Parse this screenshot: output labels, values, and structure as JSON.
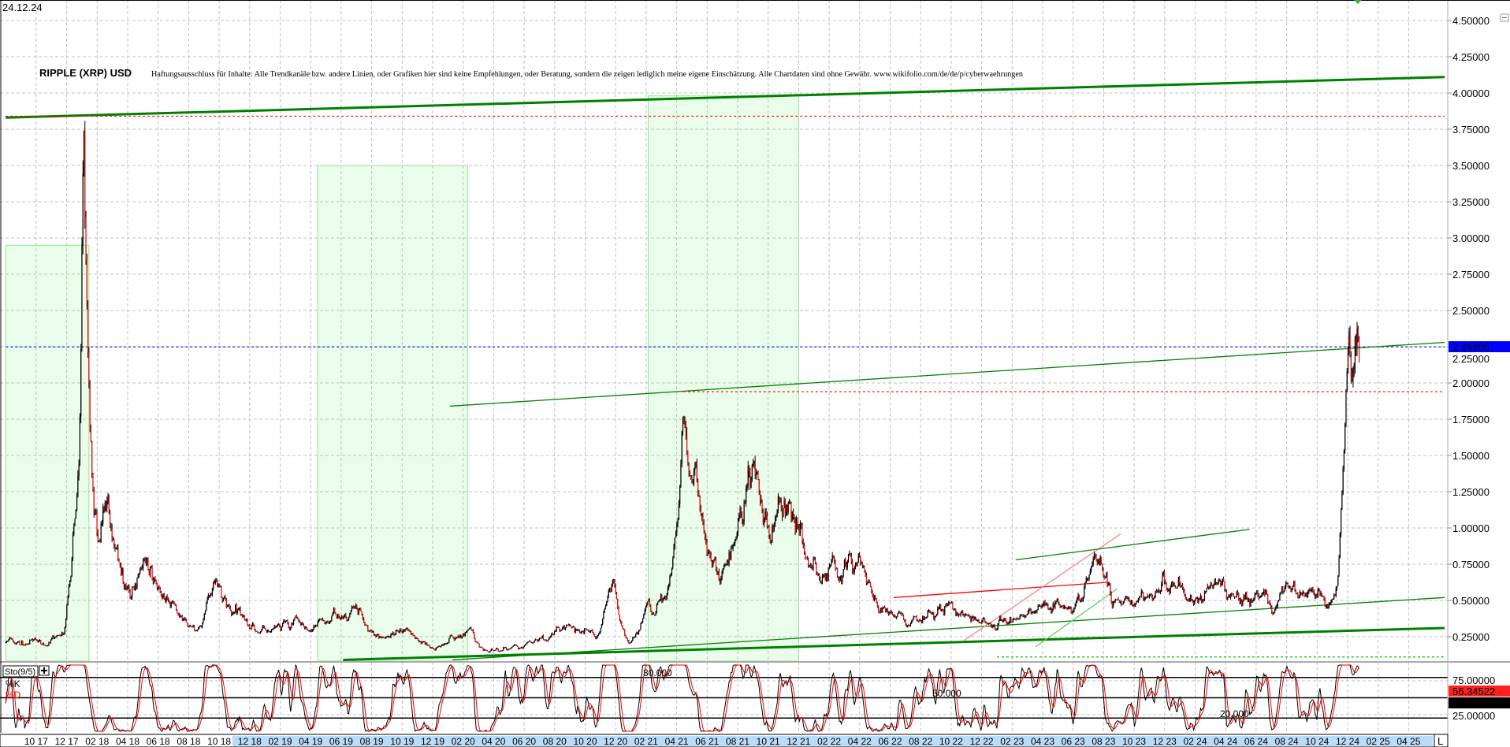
{
  "header": {
    "date": "24.12.24",
    "title": "RIPPLE (XRP) USD",
    "disclaimer": "Haftungsausschluss für Inhalte: Alle Trendkanäle bzw. andere Linien, oder Grafiken hier sind keine Empfehlungen, oder Beratung, sondern die zeigen lediglich meine eigene Einschätzung. Alle Chartdaten sind ohne Gewähr.  www.wikifolio.com/de/de/p/cyberwaehrungen"
  },
  "colors": {
    "grid": "#c0c0c0",
    "candle": "#000000",
    "candle_down": "#ff0000",
    "trend_green": "#008000",
    "zone_fill": "#eafdea",
    "zone_border": "#8ee88e",
    "last_price_bg": "#0000ff",
    "k_line": "#000000",
    "d_line": "#ff0000"
  },
  "chart_data": [
    {
      "type": "candlestick",
      "title": "RIPPLE (XRP) USD",
      "y_axis_position": "right",
      "ylim": [
        0.08,
        4.64
      ],
      "y_ticks": [
        "4.50000",
        "4.25000",
        "4.00000",
        "3.75000",
        "3.50000",
        "3.25000",
        "3.00000",
        "2.75000",
        "2.50000",
        "2.25000",
        "2.00000",
        "1.75000",
        "1.50000",
        "1.25000",
        "1.00000",
        "0.75000",
        "0.50000",
        "0.25000"
      ],
      "y_tick_values": [
        4.5,
        4.25,
        4.0,
        3.75,
        3.5,
        3.25,
        3.0,
        2.75,
        2.5,
        2.25,
        2.0,
        1.75,
        1.5,
        1.25,
        1.0,
        0.75,
        0.5,
        0.25
      ],
      "grid": true,
      "last_price": {
        "value": 2.24905,
        "label": "2.24905"
      },
      "close_keypoints": [
        [
          "2017-08-01",
          0.22
        ],
        [
          "2017-09-15",
          0.2
        ],
        [
          "2017-11-01",
          0.22
        ],
        [
          "2017-11-25",
          0.25
        ],
        [
          "2017-12-10",
          0.75
        ],
        [
          "2017-12-25",
          1.5
        ],
        [
          "2018-01-04",
          3.4
        ],
        [
          "2018-01-15",
          1.8
        ],
        [
          "2018-02-06",
          0.8
        ],
        [
          "2018-02-20",
          1.2
        ],
        [
          "2018-03-20",
          0.7
        ],
        [
          "2018-04-06",
          0.5
        ],
        [
          "2018-05-01",
          0.9
        ],
        [
          "2018-05-30",
          0.6
        ],
        [
          "2018-07-01",
          0.45
        ],
        [
          "2018-08-15",
          0.27
        ],
        [
          "2018-09-21",
          0.6
        ],
        [
          "2018-10-15",
          0.45
        ],
        [
          "2018-11-20",
          0.4
        ],
        [
          "2018-12-20",
          0.3
        ],
        [
          "2019-02-15",
          0.3
        ],
        [
          "2019-04-15",
          0.32
        ],
        [
          "2019-06-25",
          0.45
        ],
        [
          "2019-08-15",
          0.27
        ],
        [
          "2019-10-01",
          0.27
        ],
        [
          "2019-12-20",
          0.19
        ],
        [
          "2020-02-15",
          0.3
        ],
        [
          "2020-03-15",
          0.15
        ],
        [
          "2020-06-01",
          0.2
        ],
        [
          "2020-08-20",
          0.3
        ],
        [
          "2020-10-20",
          0.25
        ],
        [
          "2020-11-24",
          0.65
        ],
        [
          "2020-12-28",
          0.2
        ],
        [
          "2021-02-01",
          0.45
        ],
        [
          "2021-03-15",
          0.5
        ],
        [
          "2021-04-14",
          1.8
        ],
        [
          "2021-05-10",
          1.5
        ],
        [
          "2021-05-25",
          0.9
        ],
        [
          "2021-06-25",
          0.6
        ],
        [
          "2021-08-15",
          1.2
        ],
        [
          "2021-09-06",
          1.35
        ],
        [
          "2021-10-01",
          0.95
        ],
        [
          "2021-11-10",
          1.2
        ],
        [
          "2021-12-15",
          0.85
        ],
        [
          "2022-01-25",
          0.65
        ],
        [
          "2022-03-30",
          0.85
        ],
        [
          "2022-05-10",
          0.4
        ],
        [
          "2022-07-01",
          0.33
        ],
        [
          "2022-09-25",
          0.48
        ],
        [
          "2022-11-10",
          0.38
        ],
        [
          "2022-12-30",
          0.34
        ],
        [
          "2023-02-15",
          0.4
        ],
        [
          "2023-04-05",
          0.5
        ],
        [
          "2023-06-15",
          0.5
        ],
        [
          "2023-07-15",
          0.8
        ],
        [
          "2023-08-17",
          0.5
        ],
        [
          "2023-10-20",
          0.52
        ],
        [
          "2023-12-15",
          0.62
        ],
        [
          "2024-02-01",
          0.5
        ],
        [
          "2024-03-12",
          0.65
        ],
        [
          "2024-04-15",
          0.5
        ],
        [
          "2024-06-15",
          0.48
        ],
        [
          "2024-07-08",
          0.42
        ],
        [
          "2024-08-01",
          0.6
        ],
        [
          "2024-10-01",
          0.53
        ],
        [
          "2024-11-05",
          0.5
        ],
        [
          "2024-11-12",
          0.7
        ],
        [
          "2024-11-22",
          1.4
        ],
        [
          "2024-12-02",
          2.6
        ],
        [
          "2024-12-03",
          2.8
        ],
        [
          "2024-12-10",
          2.1
        ],
        [
          "2024-12-16",
          2.5
        ],
        [
          "2024-12-24",
          2.25
        ]
      ],
      "zones": [
        {
          "from": "2017-08-01",
          "to": "2018-01-15",
          "top": 2.95
        },
        {
          "from": "2019-04-15",
          "to": "2020-02-10",
          "top": 3.5
        },
        {
          "from": "2021-02-05",
          "to": "2021-12-01",
          "top": 3.98
        }
      ],
      "trendlines": [
        {
          "from": [
            "2017-08-01",
            3.83
          ],
          "to": [
            "2025-06-12",
            4.11
          ],
          "color": "#008000",
          "style": "thick"
        },
        {
          "from": [
            "2017-08-01",
            3.84
          ],
          "to": [
            "2025-06-12",
            3.84
          ],
          "color": "#ff0000",
          "style": "dotted"
        },
        {
          "from": [
            "2017-08-01",
            2.24905
          ],
          "to": [
            "2025-06-12",
            2.24905
          ],
          "color": "#0000ff",
          "style": "dotted"
        },
        {
          "from": [
            "2020-01-05",
            1.84
          ],
          "to": [
            "2025-06-12",
            2.28
          ],
          "color": "#008000",
          "style": "thin"
        },
        {
          "from": [
            "2021-04-14",
            1.94
          ],
          "to": [
            "2025-06-12",
            1.94
          ],
          "color": "#ff0000",
          "style": "dotted"
        },
        {
          "from": [
            "2019-06-05",
            0.09
          ],
          "to": [
            "2025-06-12",
            0.31
          ],
          "color": "#008000",
          "style": "thick"
        },
        {
          "from": [
            "2020-01-10",
            0.09
          ],
          "to": [
            "2025-06-12",
            0.52
          ],
          "color": "#008000",
          "style": "thin"
        },
        {
          "from": [
            "2023-01-01",
            0.11
          ],
          "to": [
            "2025-06-12",
            0.11
          ],
          "color": "#00c000",
          "style": "dotted"
        },
        {
          "from": [
            "2022-06-08",
            0.52
          ],
          "to": [
            "2023-08-08",
            0.625
          ],
          "color": "#ff0000",
          "style": "thin"
        },
        {
          "from": [
            "2022-10-25",
            0.22
          ],
          "to": [
            "2023-09-05",
            0.96
          ],
          "color": "#ff8080",
          "style": "thin"
        },
        {
          "from": [
            "2023-02-08",
            0.78
          ],
          "to": [
            "2024-05-18",
            0.99
          ],
          "color": "#008000",
          "style": "thin"
        },
        {
          "from": [
            "2023-03-17",
            0.18
          ],
          "to": [
            "2023-08-28",
            0.58
          ],
          "color": "#60d060",
          "style": "thin"
        }
      ]
    },
    {
      "type": "line",
      "indicator": "Sto(9/5)",
      "legend": [
        "%K",
        "%D"
      ],
      "ylim": [
        0,
        100
      ],
      "levels": [
        {
          "value": 80,
          "label": "80.000"
        },
        {
          "value": 50,
          "label": "50.000"
        },
        {
          "value": 20,
          "label": "20.000"
        }
      ],
      "y_ticks": [
        "75.00000",
        "25.00000"
      ],
      "y_tick_values": [
        75,
        25
      ],
      "last_d": {
        "value": 56.34522,
        "label": "56.34522"
      },
      "last_k": {
        "value": 45.11574,
        "label": "45.11574"
      }
    }
  ],
  "x_axis": {
    "labels": [
      "10 17",
      "12 17",
      "02 18",
      "04 18",
      "06 18",
      "08 18",
      "10 18",
      "12 18",
      "02 19",
      "04 19",
      "06 19",
      "08 19",
      "10 19",
      "12 19",
      "02 20",
      "04 20",
      "06 20",
      "08 20",
      "10 20",
      "12 20",
      "02 21",
      "04 21",
      "06 21",
      "08 21",
      "10 21",
      "12 21",
      "02 22",
      "04 22",
      "06 22",
      "08 22",
      "10 22",
      "12 22",
      "02 23",
      "04 23",
      "06 23",
      "08 23",
      "10 23",
      "12 23",
      "02 24",
      "04 24",
      "06 24",
      "08 24",
      "10 24",
      "12 24",
      "02 25",
      "04 25"
    ],
    "scale_button": "L"
  }
}
